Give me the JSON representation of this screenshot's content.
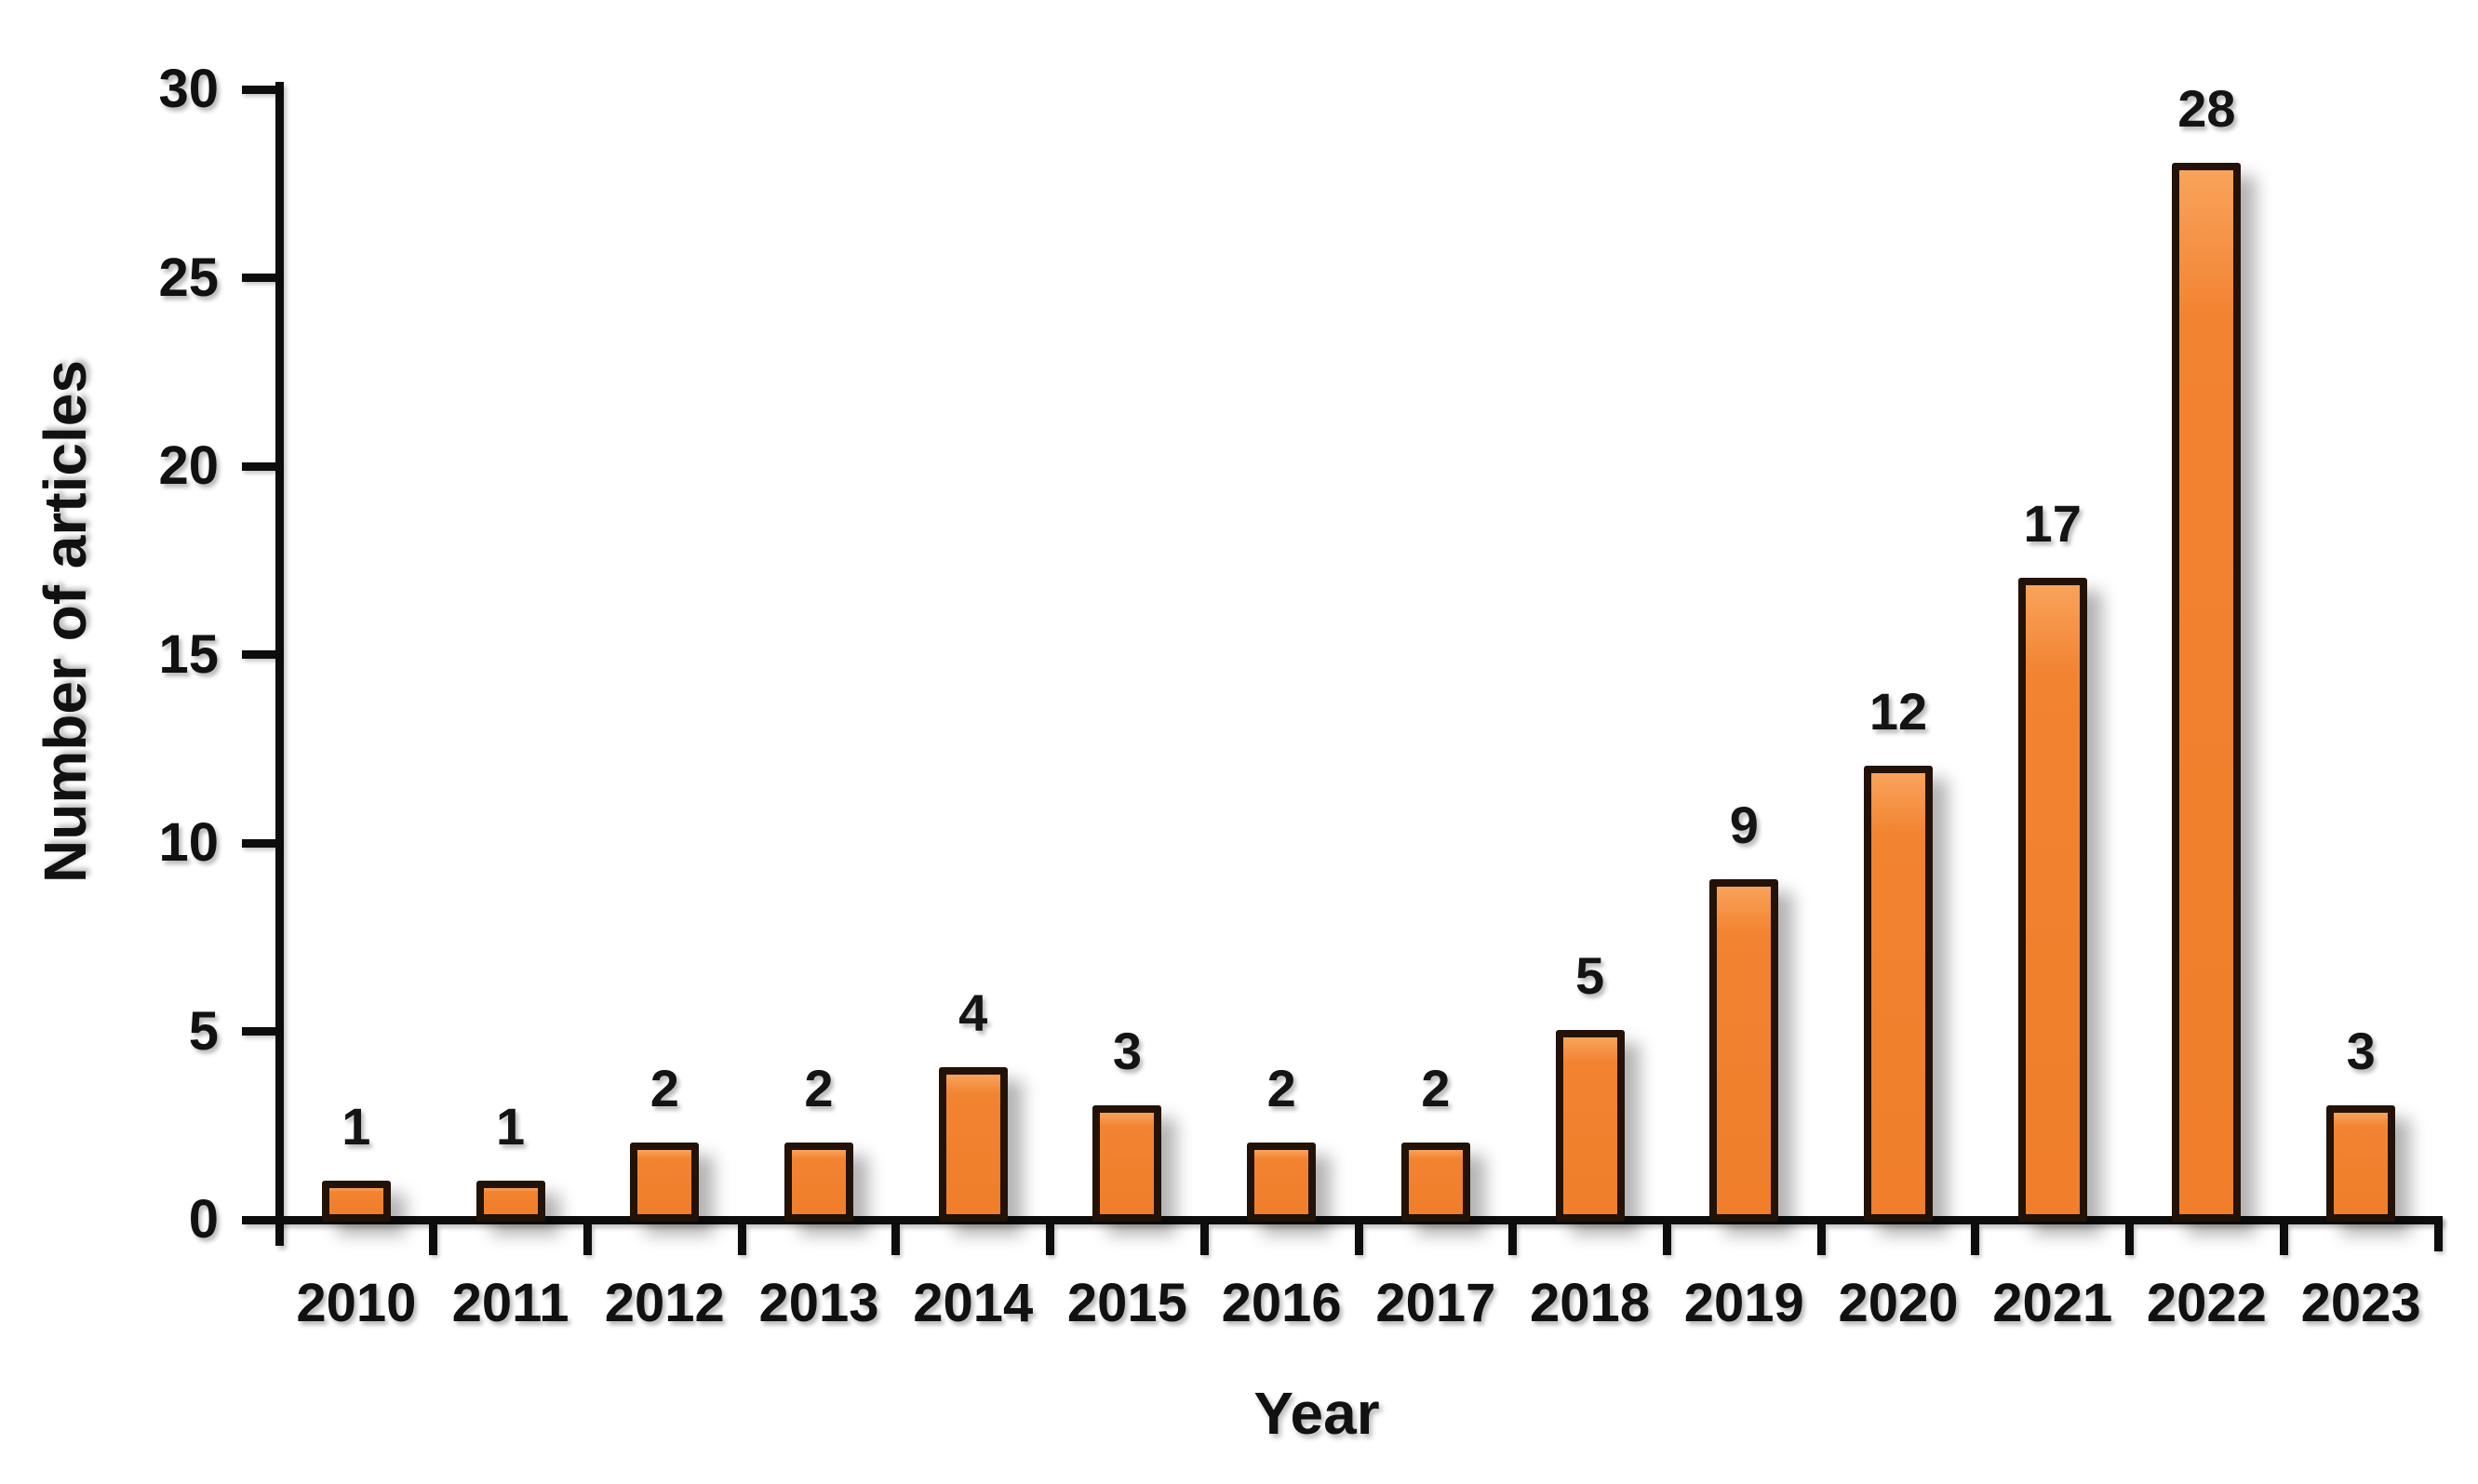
{
  "chart_data": {
    "type": "bar",
    "title": "",
    "categories": [
      "2010",
      "2011",
      "2012",
      "2013",
      "2014",
      "2015",
      "2016",
      "2017",
      "2018",
      "2019",
      "2020",
      "2021",
      "2022",
      "2023"
    ],
    "values": [
      1,
      1,
      2,
      2,
      4,
      3,
      2,
      2,
      5,
      9,
      12,
      17,
      28,
      3
    ],
    "xlabel": "Year",
    "ylabel": "Number of articles",
    "ylim": [
      0,
      30
    ],
    "yticks": [
      0,
      5,
      10,
      15,
      20,
      25,
      30
    ],
    "grid": false,
    "legend": "none",
    "bar_color": "#F07E2A",
    "bar_highlight_color": "#F9A35B",
    "bar_border_color": "#231207",
    "axis_color": "#0D0D0D",
    "label_color": "#111111",
    "background_color": "#FFFFFF"
  }
}
